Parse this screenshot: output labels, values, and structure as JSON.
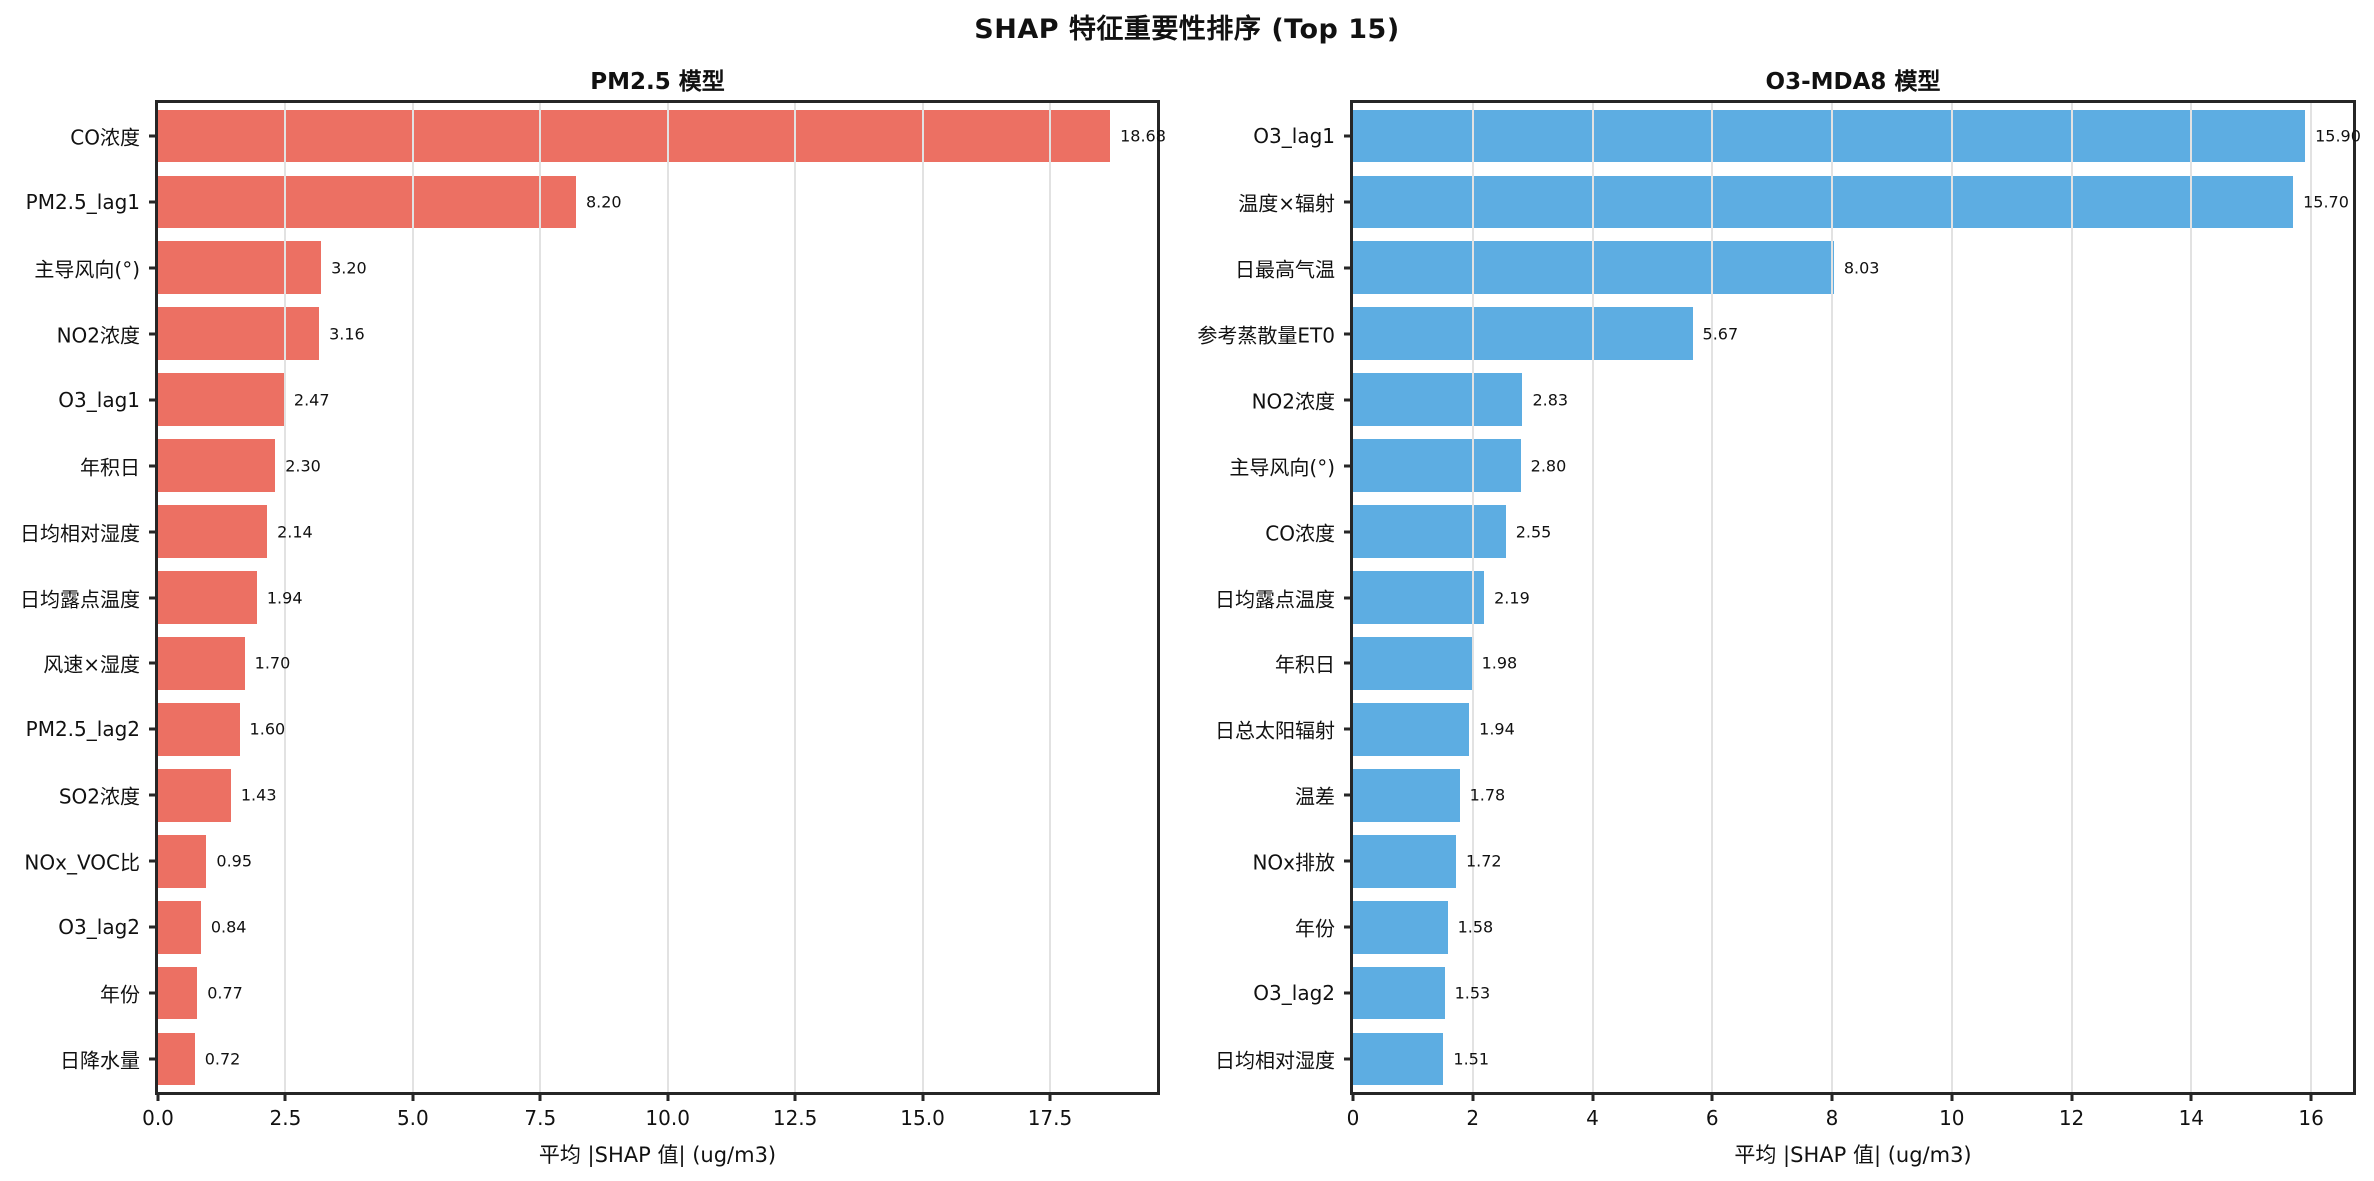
{
  "suptitle": "SHAP 特征重要性排序 (Top 15)",
  "chart_data": [
    {
      "type": "bar",
      "orientation": "horizontal",
      "title": "PM2.5 模型",
      "xlabel": "平均 |SHAP 值| (ug/m3)",
      "bar_color": "#ec7063",
      "grid": true,
      "xlim": [
        0,
        19.6
      ],
      "xtick_values": [
        0,
        2.5,
        5,
        7.5,
        10,
        12.5,
        15,
        17.5
      ],
      "xtick_labels": [
        "0.0",
        "2.5",
        "5.0",
        "7.5",
        "10.0",
        "12.5",
        "15.0",
        "17.5"
      ],
      "categories": [
        "CO浓度",
        "PM2.5_lag1",
        "主导风向(°)",
        "NO2浓度",
        "O3_lag1",
        "年积日",
        "日均相对湿度",
        "日均露点温度",
        "风速×湿度",
        "PM2.5_lag2",
        "SO2浓度",
        "NOx_VOC比",
        "O3_lag2",
        "年份",
        "日降水量"
      ],
      "values": [
        18.68,
        8.2,
        3.2,
        3.16,
        2.47,
        2.3,
        2.14,
        1.94,
        1.7,
        1.6,
        1.43,
        0.95,
        0.84,
        0.77,
        0.72
      ],
      "value_labels": [
        "18.68",
        "8.20",
        "3.20",
        "3.16",
        "2.47",
        "2.30",
        "2.14",
        "1.94",
        "1.70",
        "1.60",
        "1.43",
        "0.95",
        "0.84",
        "0.77",
        "0.72"
      ]
    },
    {
      "type": "bar",
      "orientation": "horizontal",
      "title": "O3-MDA8 模型",
      "xlabel": "平均 |SHAP 值| (ug/m3)",
      "bar_color": "#5dade2",
      "grid": true,
      "xlim": [
        0,
        16.7
      ],
      "xtick_values": [
        0,
        2,
        4,
        6,
        8,
        10,
        12,
        14,
        16
      ],
      "xtick_labels": [
        "0",
        "2",
        "4",
        "6",
        "8",
        "10",
        "12",
        "14",
        "16"
      ],
      "categories": [
        "O3_lag1",
        "温度×辐射",
        "日最高气温",
        "参考蒸散量ET0",
        "NO2浓度",
        "主导风向(°)",
        "CO浓度",
        "日均露点温度",
        "年积日",
        "日总太阳辐射",
        "温差",
        "NOx排放",
        "年份",
        "O3_lag2",
        "日均相对湿度"
      ],
      "values": [
        15.9,
        15.7,
        8.03,
        5.67,
        2.83,
        2.8,
        2.55,
        2.19,
        1.98,
        1.94,
        1.78,
        1.72,
        1.58,
        1.53,
        1.51
      ],
      "value_labels": [
        "15.90",
        "15.70",
        "8.03",
        "5.67",
        "2.83",
        "2.80",
        "2.55",
        "2.19",
        "1.98",
        "1.94",
        "1.78",
        "1.72",
        "1.58",
        "1.53",
        "1.51"
      ]
    }
  ]
}
